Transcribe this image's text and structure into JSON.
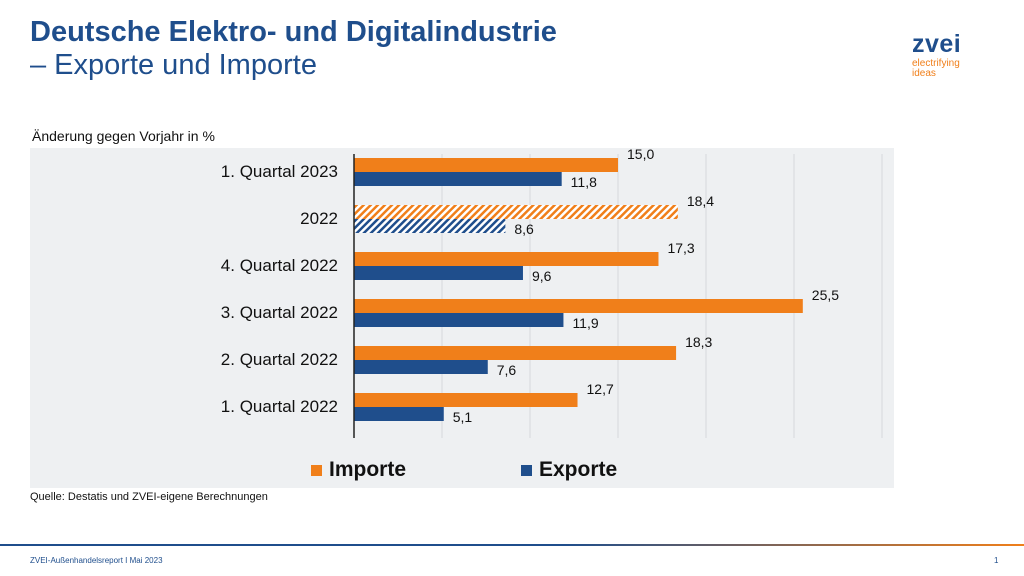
{
  "title": {
    "line1": "Deutsche Elektro- und Digitalindustrie",
    "line2": "– Exporte und Importe"
  },
  "logo": {
    "word": "zvei",
    "tagline": "electrifying ideas"
  },
  "subtitle": "Änderung gegen Vorjahr in %",
  "source": "Quelle: Destatis und ZVEI-eigene Berechnungen",
  "footer": {
    "left": "ZVEI-Außenhandelsreport I Mai 2023",
    "page": "1"
  },
  "colors": {
    "imports": "#f07f1a",
    "exports": "#1f4e8c",
    "brand": "#1f4e8c"
  },
  "chart_data": {
    "type": "bar",
    "orientation": "horizontal",
    "categories": [
      "1. Quartal 2023",
      "2022",
      "4. Quartal 2022",
      "3. Quartal 2022",
      "2. Quartal 2022",
      "1. Quartal 2022"
    ],
    "hatched_categories": [
      "2022"
    ],
    "series": [
      {
        "name": "Importe",
        "values": [
          15.0,
          18.4,
          17.3,
          25.5,
          18.3,
          12.7
        ],
        "labels": [
          "15,0",
          "18,4",
          "17,3",
          "25,5",
          "18,3",
          "12,7"
        ]
      },
      {
        "name": "Exporte",
        "values": [
          11.8,
          8.6,
          9.6,
          11.9,
          7.6,
          5.1
        ],
        "labels": [
          "11,8",
          "8,6",
          "9,6",
          "11,9",
          "7,6",
          "5,1"
        ]
      }
    ],
    "xlim": [
      0,
      30
    ],
    "grid": true,
    "legend": "bottom"
  }
}
